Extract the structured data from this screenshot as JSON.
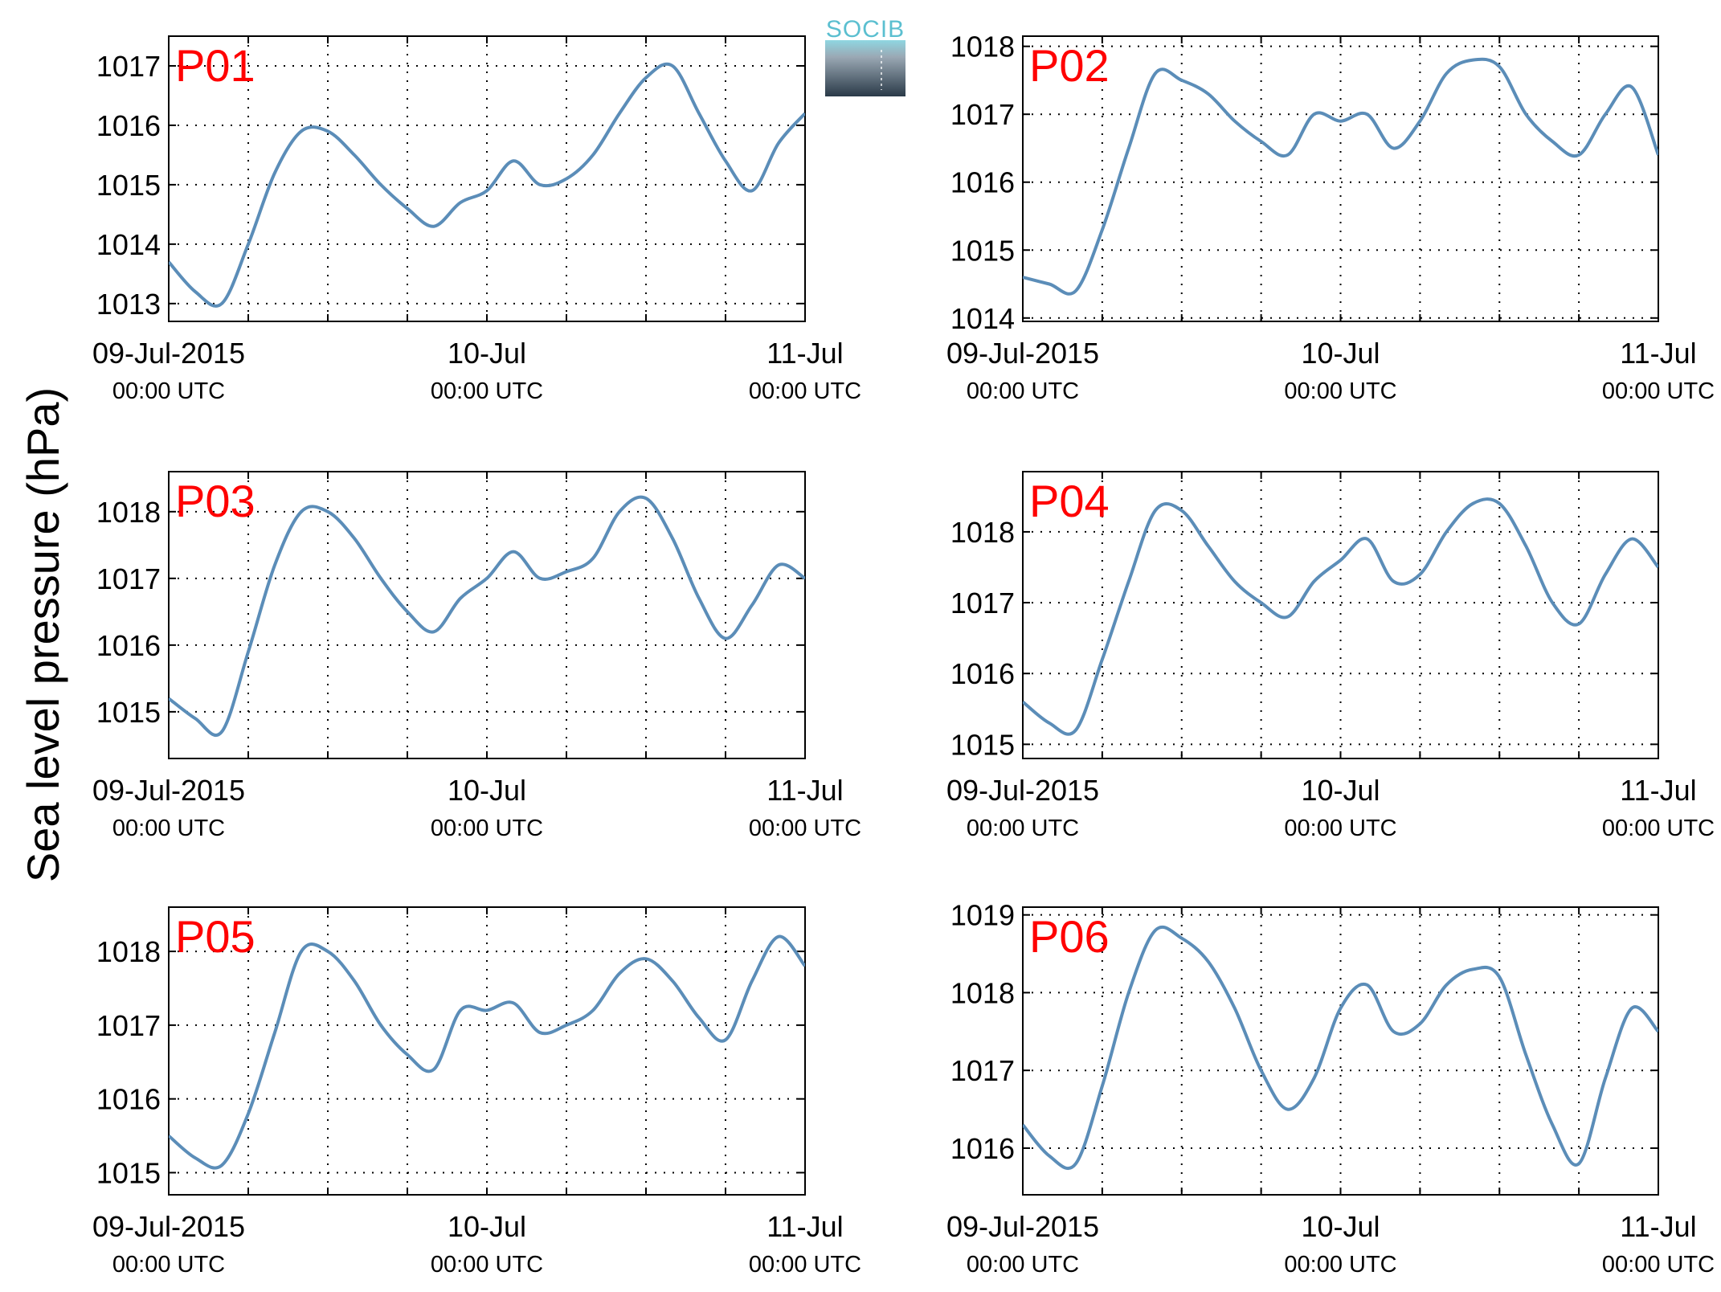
{
  "ylabel": "Sea level pressure (hPa)",
  "logo": {
    "text": "SOCIB"
  },
  "colors": {
    "line": "#5b8db8",
    "panel_label": "#ff0000",
    "grid": "#000000",
    "logo_text": "#5bbfd0"
  },
  "x_tick_labels": [
    {
      "date": "09-Jul-2015",
      "time": "00:00 UTC"
    },
    {
      "date": "10-Jul",
      "time": "00:00 UTC"
    },
    {
      "date": "11-Jul",
      "time": "00:00 UTC"
    }
  ],
  "chart_data": [
    {
      "type": "line",
      "panel": "P01",
      "grid": true,
      "xlim": [
        "2015-07-09T00:00",
        "2015-07-11T00:00"
      ],
      "ylim": [
        1012.7,
        1017.5
      ],
      "yticks": [
        1013,
        1014,
        1015,
        1016,
        1017
      ],
      "x_hours": [
        0,
        2,
        4,
        6,
        8,
        10,
        12,
        14,
        16,
        18,
        20,
        22,
        24,
        26,
        28,
        30,
        32,
        34,
        36,
        38,
        40,
        42,
        44,
        46,
        48
      ],
      "values": [
        1013.7,
        1013.2,
        1013.0,
        1014.0,
        1015.2,
        1015.9,
        1015.9,
        1015.5,
        1015.0,
        1014.6,
        1014.3,
        1014.7,
        1014.9,
        1015.4,
        1015.0,
        1015.1,
        1015.5,
        1016.2,
        1016.8,
        1017.0,
        1016.2,
        1015.4,
        1014.9,
        1015.7,
        1016.2
      ]
    },
    {
      "type": "line",
      "panel": "P02",
      "grid": true,
      "xlim": [
        "2015-07-09T00:00",
        "2015-07-11T00:00"
      ],
      "ylim": [
        1013.95,
        1018.15
      ],
      "yticks": [
        1014,
        1015,
        1016,
        1017,
        1018
      ],
      "x_hours": [
        0,
        2,
        4,
        6,
        8,
        10,
        12,
        14,
        16,
        18,
        20,
        22,
        24,
        26,
        28,
        30,
        32,
        34,
        36,
        38,
        40,
        42,
        44,
        46,
        48
      ],
      "values": [
        1014.6,
        1014.5,
        1014.4,
        1015.3,
        1016.5,
        1017.6,
        1017.5,
        1017.3,
        1016.9,
        1016.6,
        1016.4,
        1017.0,
        1016.9,
        1017.0,
        1016.5,
        1016.9,
        1017.6,
        1017.8,
        1017.7,
        1017.0,
        1016.6,
        1016.4,
        1017.0,
        1017.4,
        1016.4
      ]
    },
    {
      "type": "line",
      "panel": "P03",
      "grid": true,
      "xlim": [
        "2015-07-09T00:00",
        "2015-07-11T00:00"
      ],
      "ylim": [
        1014.3,
        1018.6
      ],
      "yticks": [
        1015,
        1016,
        1017,
        1018
      ],
      "x_hours": [
        0,
        2,
        4,
        6,
        8,
        10,
        12,
        14,
        16,
        18,
        20,
        22,
        24,
        26,
        28,
        30,
        32,
        34,
        36,
        38,
        40,
        42,
        44,
        46,
        48
      ],
      "values": [
        1015.2,
        1014.9,
        1014.7,
        1015.9,
        1017.2,
        1018.0,
        1018.0,
        1017.6,
        1017.0,
        1016.5,
        1016.2,
        1016.7,
        1017.0,
        1017.4,
        1017.0,
        1017.1,
        1017.3,
        1018.0,
        1018.2,
        1017.6,
        1016.7,
        1016.1,
        1016.6,
        1017.2,
        1017.0
      ]
    },
    {
      "type": "line",
      "panel": "P04",
      "grid": true,
      "xlim": [
        "2015-07-09T00:00",
        "2015-07-11T00:00"
      ],
      "ylim": [
        1014.8,
        1018.85
      ],
      "yticks": [
        1015,
        1016,
        1017,
        1018
      ],
      "x_hours": [
        0,
        2,
        4,
        6,
        8,
        10,
        12,
        14,
        16,
        18,
        20,
        22,
        24,
        26,
        28,
        30,
        32,
        34,
        36,
        38,
        40,
        42,
        44,
        46,
        48
      ],
      "values": [
        1015.6,
        1015.3,
        1015.2,
        1016.2,
        1017.3,
        1018.3,
        1018.3,
        1017.8,
        1017.3,
        1017.0,
        1016.8,
        1017.3,
        1017.6,
        1017.9,
        1017.3,
        1017.4,
        1018.0,
        1018.4,
        1018.4,
        1017.8,
        1017.0,
        1016.7,
        1017.4,
        1017.9,
        1017.5
      ]
    },
    {
      "type": "line",
      "panel": "P05",
      "grid": true,
      "xlim": [
        "2015-07-09T00:00",
        "2015-07-11T00:00"
      ],
      "ylim": [
        1014.7,
        1018.6
      ],
      "yticks": [
        1015,
        1016,
        1017,
        1018
      ],
      "x_hours": [
        0,
        2,
        4,
        6,
        8,
        10,
        12,
        14,
        16,
        18,
        20,
        22,
        24,
        26,
        28,
        30,
        32,
        34,
        36,
        38,
        40,
        42,
        44,
        46,
        48
      ],
      "values": [
        1015.5,
        1015.2,
        1015.1,
        1015.8,
        1016.9,
        1018.0,
        1018.0,
        1017.6,
        1017.0,
        1016.6,
        1016.4,
        1017.2,
        1017.2,
        1017.3,
        1016.9,
        1017.0,
        1017.2,
        1017.7,
        1017.9,
        1017.6,
        1017.1,
        1016.8,
        1017.6,
        1018.2,
        1017.8
      ]
    },
    {
      "type": "line",
      "panel": "P06",
      "grid": true,
      "xlim": [
        "2015-07-09T00:00",
        "2015-07-11T00:00"
      ],
      "ylim": [
        1015.4,
        1019.1
      ],
      "yticks": [
        1016,
        1017,
        1018,
        1019
      ],
      "x_hours": [
        0,
        2,
        4,
        6,
        8,
        10,
        12,
        14,
        16,
        18,
        20,
        22,
        24,
        26,
        28,
        30,
        32,
        34,
        36,
        38,
        40,
        42,
        44,
        46,
        48
      ],
      "values": [
        1016.3,
        1015.9,
        1015.8,
        1016.8,
        1018.0,
        1018.8,
        1018.7,
        1018.4,
        1017.8,
        1017.0,
        1016.5,
        1016.9,
        1017.8,
        1018.1,
        1017.5,
        1017.6,
        1018.1,
        1018.3,
        1018.2,
        1017.2,
        1016.3,
        1015.8,
        1016.9,
        1017.8,
        1017.5
      ]
    }
  ]
}
